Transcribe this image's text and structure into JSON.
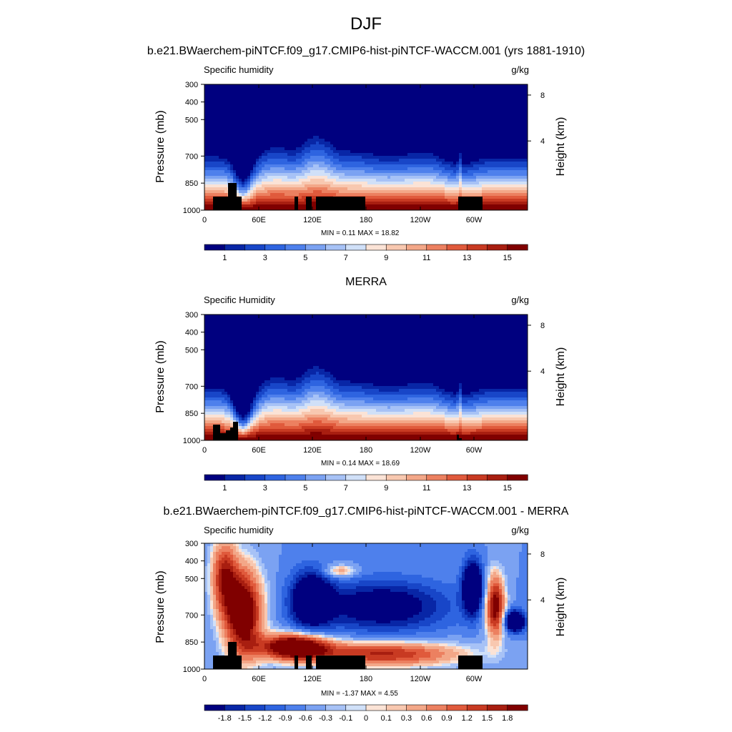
{
  "figure": {
    "title": "DJF"
  },
  "chart_data": [
    {
      "type": "heatmap",
      "subtype": "filled-contour pressure-longitude cross section",
      "title": "b.e21.BWaerchem-piNTCF.f09_g17.CMIP6-hist-piNTCF-WACCM.001 (yrs 1881-1910)",
      "left_label": "Specific humidity",
      "right_label": "g/kg",
      "ylabel": "Pressure (mb)",
      "y2label": "Height (km)",
      "x_ticks": [
        "0",
        "60E",
        "120E",
        "180",
        "120W",
        "60W"
      ],
      "y_ticks": [
        "300",
        "400",
        "500",
        "700",
        "850",
        "1000"
      ],
      "y2_ticks": [
        "8",
        "4"
      ],
      "minmax_text": "MIN =   0.11  MAX =  18.82",
      "min": 0.11,
      "max": 18.82,
      "colorbar_labels": [
        "1",
        "3",
        "5",
        "7",
        "9",
        "11",
        "13",
        "15"
      ],
      "colors": [
        "#00007f",
        "#0826a6",
        "#1846c8",
        "#2e64e0",
        "#4e80ec",
        "#7ba2f2",
        "#a7c2f6",
        "#d0e0f8",
        "#fbe3d6",
        "#f8c8b0",
        "#f3a788",
        "#ec8060",
        "#e05a3c",
        "#c83a22",
        "#a81e10",
        "#800000"
      ]
    },
    {
      "type": "heatmap",
      "subtype": "filled-contour pressure-longitude cross section",
      "title": "MERRA",
      "left_label": "Specific Humidity",
      "right_label": "g/kg",
      "ylabel": "Pressure (mb)",
      "y2label": "Height (km)",
      "x_ticks": [
        "0",
        "60E",
        "120E",
        "180",
        "120W",
        "60W"
      ],
      "y_ticks": [
        "300",
        "400",
        "500",
        "700",
        "850",
        "1000"
      ],
      "y2_ticks": [
        "8",
        "4"
      ],
      "minmax_text": "MIN =   0.14  MAX =  18.69",
      "min": 0.14,
      "max": 18.69,
      "colorbar_labels": [
        "1",
        "3",
        "5",
        "7",
        "9",
        "11",
        "13",
        "15"
      ],
      "colors": [
        "#00007f",
        "#0826a6",
        "#1846c8",
        "#2e64e0",
        "#4e80ec",
        "#7ba2f2",
        "#a7c2f6",
        "#d0e0f8",
        "#fbe3d6",
        "#f8c8b0",
        "#f3a788",
        "#ec8060",
        "#e05a3c",
        "#c83a22",
        "#a81e10",
        "#800000"
      ]
    },
    {
      "type": "heatmap",
      "subtype": "filled-contour difference",
      "title": "b.e21.BWaerchem-piNTCF.f09_g17.CMIP6-hist-piNTCF-WACCM.001 - MERRA",
      "left_label": "Specific humidity",
      "right_label": "g/kg",
      "ylabel": "Pressure (mb)",
      "y2label": "Height (km)",
      "x_ticks": [
        "0",
        "60E",
        "120E",
        "180",
        "120W",
        "60W"
      ],
      "y_ticks": [
        "300",
        "400",
        "500",
        "700",
        "850",
        "1000"
      ],
      "y2_ticks": [
        "8",
        "4"
      ],
      "minmax_text": "MIN =  -1.37  MAX =   4.55",
      "min": -1.37,
      "max": 4.55,
      "colorbar_labels": [
        "-1.8",
        "-1.5",
        "-1.2",
        "-0.9",
        "-0.6",
        "-0.3",
        "-0.1",
        "0",
        "0.1",
        "0.3",
        "0.6",
        "0.9",
        "1.2",
        "1.5",
        "1.8"
      ],
      "colors": [
        "#00007f",
        "#0826a6",
        "#1846c8",
        "#2e64e0",
        "#4e80ec",
        "#7ba2f2",
        "#a7c2f6",
        "#d0e0f8",
        "#fbe3d6",
        "#f8c8b0",
        "#f3a788",
        "#ec8060",
        "#e05a3c",
        "#c83a22",
        "#a81e10",
        "#800000"
      ]
    }
  ]
}
